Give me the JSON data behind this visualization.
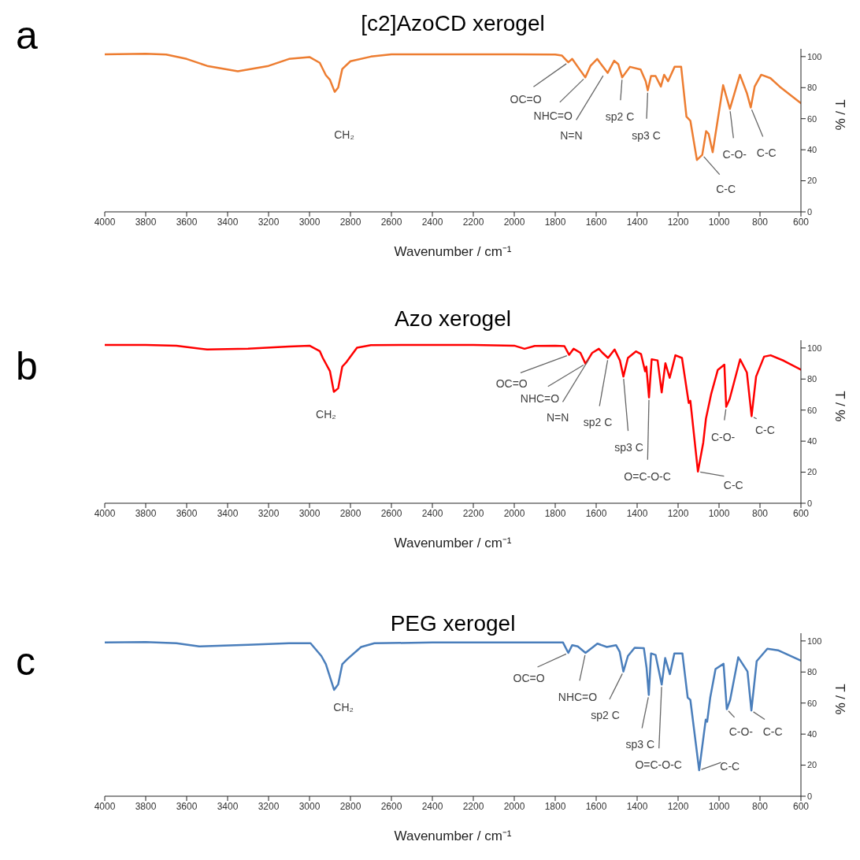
{
  "chart_data": [
    {
      "type": "line",
      "title": "[c2]AzoCD xerogel",
      "xlabel": "Wavenumber / cm⁻¹",
      "ylabel": "T / %",
      "color": "#ed7d31",
      "x": [
        4000,
        3800,
        3700,
        3600,
        3500,
        3350,
        3200,
        3100,
        3000,
        2950,
        2920,
        2900,
        2877,
        2860,
        2840,
        2800,
        2700,
        2600,
        2400,
        2200,
        2000,
        1800,
        1768,
        1736,
        1717,
        1685,
        1653,
        1627,
        1595,
        1576,
        1544,
        1512,
        1492,
        1473,
        1435,
        1383,
        1358,
        1348,
        1332,
        1310,
        1284,
        1268,
        1249,
        1217,
        1185,
        1159,
        1140,
        1108,
        1082,
        1063,
        1051,
        1031,
        980,
        947,
        898,
        864,
        845,
        826,
        794,
        749,
        704,
        614,
        600
      ],
      "values": [
        101.5,
        101.8,
        101.3,
        98.5,
        94,
        90.5,
        94,
        98.5,
        99.7,
        96,
        88,
        85,
        77.3,
        80,
        92,
        97,
        100,
        101.5,
        101.5,
        101.5,
        101.5,
        101.3,
        100.7,
        96.3,
        98.5,
        92.5,
        86.6,
        94.2,
        98.5,
        95.1,
        89.5,
        97.3,
        95.1,
        86.6,
        93.4,
        91.7,
        84.1,
        78.2,
        87.5,
        87.5,
        80.7,
        88.3,
        84.1,
        93.4,
        93.4,
        61.3,
        58.7,
        33.4,
        36.7,
        52,
        50.3,
        38.4,
        81.6,
        66.3,
        88.3,
        76.5,
        67.2,
        80.7,
        88.3,
        86.1,
        80.7,
        71.4,
        70
      ],
      "xlim": [
        4000,
        600
      ],
      "xticks": [
        4000,
        3800,
        3600,
        3400,
        3200,
        3000,
        2800,
        2600,
        2400,
        2200,
        2000,
        1800,
        1600,
        1400,
        1200,
        1000,
        800,
        600
      ],
      "ylim": [
        0,
        105
      ],
      "yticks": [
        0,
        20,
        40,
        60,
        80,
        100
      ],
      "annotations": [
        "a",
        "CH₂",
        {
          "text": "OC=O",
          "x": 1736,
          "y": 96.3
        },
        {
          "text": "NHC=O",
          "x": 1653,
          "y": 86.6
        },
        {
          "text": "N=N",
          "x": 1560,
          "y": 89
        },
        {
          "text": "sp2 C",
          "x": 1473,
          "y": 86.6
        },
        {
          "text": "sp3 C",
          "x": 1348,
          "y": 78.2
        },
        {
          "text": "C-C",
          "x": 1082,
          "y": 36.7
        },
        {
          "text": "C-O-",
          "x": 947,
          "y": 66.3
        },
        {
          "text": "C-C",
          "x": 845,
          "y": 67.2
        }
      ]
    },
    {
      "type": "line",
      "title": "Azo xerogel",
      "xlabel": "Wavenumber / cm⁻¹",
      "ylabel": "T / %",
      "color": "#ff0000",
      "x": [
        4000,
        3800,
        3650,
        3500,
        3300,
        3100,
        3000,
        2950,
        2935,
        2900,
        2881,
        2860,
        2840,
        2819,
        2768,
        2700,
        2400,
        2200,
        2000,
        1950,
        1900,
        1800,
        1755,
        1732,
        1710,
        1677,
        1652,
        1619,
        1587,
        1570,
        1542,
        1510,
        1484,
        1467,
        1445,
        1406,
        1381,
        1361,
        1355,
        1342,
        1329,
        1300,
        1280,
        1262,
        1241,
        1213,
        1181,
        1148,
        1140,
        1103,
        1077,
        1064,
        1038,
        1006,
        974,
        965,
        948,
        897,
        864,
        841,
        819,
        780,
        748,
        684,
        600
      ],
      "values": [
        102,
        102,
        101.5,
        99,
        99.5,
        101,
        101.5,
        98,
        93.6,
        85,
        71.8,
        74,
        88,
        91,
        100.2,
        101.8,
        102,
        102,
        101.5,
        99.5,
        101.3,
        101.5,
        101.2,
        95.6,
        99.5,
        96.9,
        89.8,
        96.9,
        99.5,
        97,
        93.6,
        99,
        92,
        81.6,
        93.6,
        97.8,
        96.1,
        85,
        88,
        68.1,
        92.7,
        92,
        71.4,
        90.2,
        80.8,
        95.3,
        93.6,
        64.6,
        66,
        20.4,
        39.1,
        54.4,
        70.6,
        85.9,
        89.3,
        62.1,
        67.2,
        92.7,
        84.2,
        56.1,
        81.6,
        94.4,
        95.3,
        91.8,
        86
      ],
      "xlim": [
        4000,
        600
      ],
      "xticks": [
        4000,
        3800,
        3600,
        3400,
        3200,
        3000,
        2800,
        2600,
        2400,
        2200,
        2000,
        1800,
        1600,
        1400,
        1200,
        1000,
        800,
        600
      ],
      "ylim": [
        0,
        105
      ],
      "yticks": [
        0,
        20,
        40,
        60,
        80,
        100
      ],
      "annotations": [
        "b",
        {
          "text": "CH₂",
          "x": 2881,
          "y": 71.8
        },
        {
          "text": "OC=O",
          "x": 1732,
          "y": 95.6
        },
        {
          "text": "NHC=O",
          "x": 1652,
          "y": 89.8
        },
        {
          "text": "N=N",
          "x": 1630,
          "y": 94
        },
        {
          "text": "sp2 C",
          "x": 1542,
          "y": 93.6
        },
        {
          "text": "sp3 C",
          "x": 1467,
          "y": 81.6
        },
        {
          "text": "O=C-O-C",
          "x": 1342,
          "y": 68.1
        },
        {
          "text": "C-C",
          "x": 1103,
          "y": 20.4
        },
        {
          "text": "C-O-",
          "x": 965,
          "y": 62.1
        },
        {
          "text": "C-C",
          "x": 841,
          "y": 56.1
        }
      ]
    },
    {
      "type": "line",
      "title": "PEG xerogel",
      "xlabel": "Wavenumber / cm⁻¹",
      "ylabel": "T / %",
      "color": "#4a7ebb",
      "x": [
        4000,
        3800,
        3650,
        3539,
        3300,
        3100,
        2995,
        2942,
        2920,
        2880,
        2860,
        2840,
        2813,
        2748,
        2683,
        2400,
        2000,
        1800,
        1762,
        1736,
        1717,
        1690,
        1652,
        1594,
        1548,
        1503,
        1485,
        1467,
        1445,
        1412,
        1367,
        1354,
        1343,
        1332,
        1310,
        1280,
        1263,
        1240,
        1218,
        1179,
        1153,
        1140,
        1097,
        1065,
        1058,
        1043,
        1017,
        978,
        962,
        946,
        906,
        861,
        842,
        816,
        764,
        712,
        600
      ],
      "values": [
        99.1,
        99.3,
        98.5,
        96.5,
        97.5,
        98.5,
        98.5,
        90.3,
        85,
        68.5,
        72,
        85,
        88.6,
        96.1,
        98.5,
        99,
        99,
        99,
        99,
        92.3,
        97.3,
        96.5,
        92.3,
        98.3,
        96.1,
        97.3,
        93,
        80.3,
        90.3,
        95.6,
        95.3,
        82.8,
        65.2,
        92,
        91,
        71.9,
        89,
        78.6,
        92,
        92,
        63.5,
        62,
        16.7,
        49.3,
        48,
        63.5,
        81.9,
        85.3,
        56,
        61.9,
        89.5,
        80.3,
        55.2,
        87,
        95,
        94,
        87.3
      ],
      "xlim": [
        4000,
        600
      ],
      "xticks": [
        4000,
        3800,
        3600,
        3400,
        3200,
        3000,
        2800,
        2600,
        2400,
        2200,
        2000,
        1800,
        1600,
        1400,
        1200,
        1000,
        800,
        600
      ],
      "ylim": [
        0,
        105
      ],
      "yticks": [
        0,
        20,
        40,
        60,
        80,
        100
      ],
      "annotations": [
        "c",
        {
          "text": "CH₂",
          "x": 2880,
          "y": 68.5
        },
        {
          "text": "OC=O",
          "x": 1736,
          "y": 92.3
        },
        {
          "text": "NHC=O",
          "x": 1652,
          "y": 92.3
        },
        {
          "text": "sp2 C",
          "x": 1467,
          "y": 80.3
        },
        {
          "text": "sp3 C",
          "x": 1343,
          "y": 65.2
        },
        {
          "text": "O=C-O-C",
          "x": 1280,
          "y": 71.9
        },
        {
          "text": "C-C",
          "x": 1097,
          "y": 16.7
        },
        {
          "text": "C-O-",
          "x": 962,
          "y": 56
        },
        {
          "text": "C-C",
          "x": 842,
          "y": 55.2
        }
      ]
    }
  ]
}
